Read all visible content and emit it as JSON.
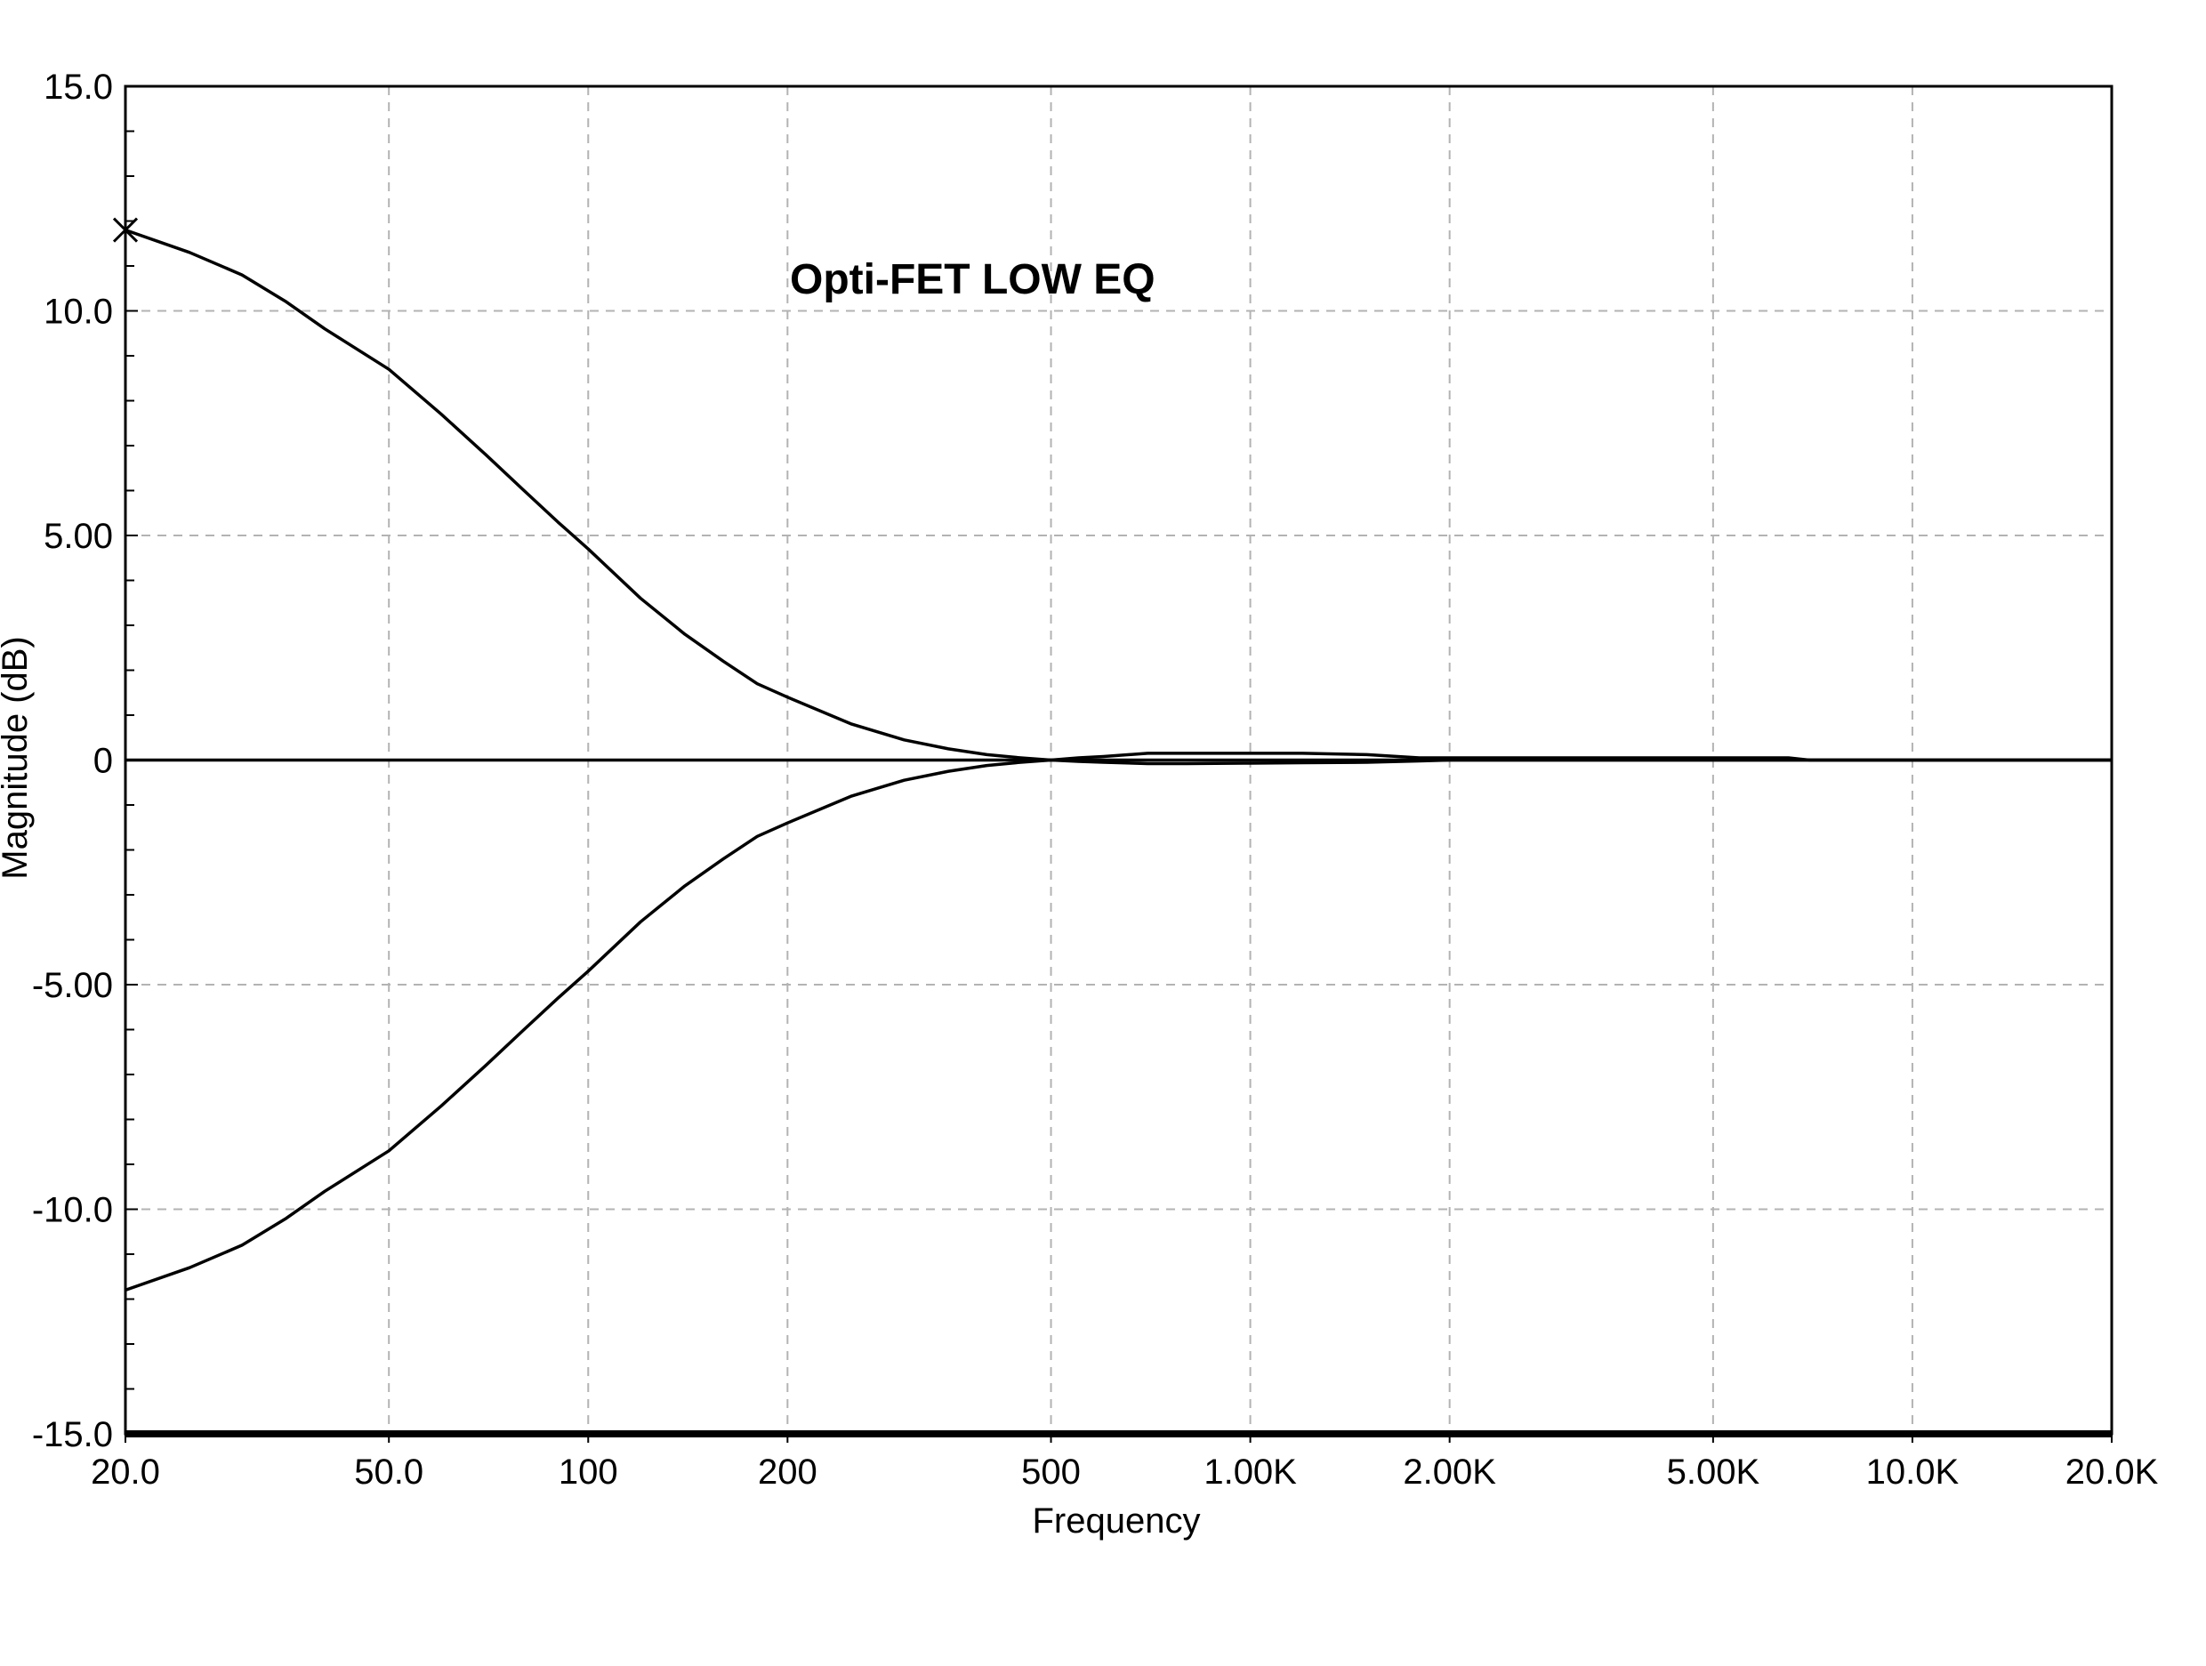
{
  "chart_data": {
    "type": "line",
    "title": "Opti-FET LOW EQ",
    "xlabel": "Frequency",
    "ylabel": "Magnitude  (dB)",
    "xscale": "log",
    "xlim": [
      20,
      20000
    ],
    "ylim": [
      -15,
      15
    ],
    "x_ticks": [
      {
        "value": 20,
        "label": "20.0"
      },
      {
        "value": 50,
        "label": "50.0"
      },
      {
        "value": 100,
        "label": "100"
      },
      {
        "value": 200,
        "label": "200"
      },
      {
        "value": 500,
        "label": "500"
      },
      {
        "value": 1000,
        "label": "1.00K"
      },
      {
        "value": 2000,
        "label": "2.00K"
      },
      {
        "value": 5000,
        "label": "5.00K"
      },
      {
        "value": 10000,
        "label": "10.0K"
      },
      {
        "value": 20000,
        "label": "20.0K"
      }
    ],
    "y_ticks": [
      {
        "value": 15,
        "label": "15.0"
      },
      {
        "value": 10,
        "label": "10.0"
      },
      {
        "value": 5,
        "label": "5.00"
      },
      {
        "value": 0,
        "label": "0"
      },
      {
        "value": -5,
        "label": "-5.00"
      },
      {
        "value": -10,
        "label": "-10.0"
      },
      {
        "value": -15,
        "label": "-15.0"
      }
    ],
    "grid": true,
    "marker": {
      "shape": "x",
      "x": 20,
      "y": 11.8
    },
    "series": [
      {
        "x": [
          20,
          25,
          30,
          35,
          40,
          50,
          60,
          70,
          80,
          90,
          100,
          120,
          140,
          160,
          180,
          200,
          250,
          300,
          350,
          400,
          450,
          500,
          550,
          600,
          700,
          800,
          1000,
          1200,
          1500,
          1800,
          2000,
          3000,
          5000,
          7000,
          10000,
          15000,
          20000
        ],
        "y": [
          11.8,
          11.3,
          10.8,
          10.2,
          9.6,
          8.7,
          7.7,
          6.8,
          6.0,
          5.3,
          4.7,
          3.6,
          2.8,
          2.2,
          1.7,
          1.4,
          0.8,
          0.45,
          0.25,
          0.12,
          0.05,
          0.0,
          -0.03,
          -0.05,
          -0.08,
          -0.08,
          -0.07,
          -0.06,
          -0.05,
          -0.02,
          0.0,
          0.0,
          0.0,
          0.0,
          0.0,
          0.0,
          0.0
        ]
      },
      {
        "x": [
          20,
          25,
          30,
          35,
          40,
          50,
          60,
          70,
          80,
          90,
          100,
          120,
          140,
          160,
          180,
          200,
          250,
          300,
          350,
          400,
          450,
          500,
          550,
          600,
          700,
          800,
          1000,
          1200,
          1500,
          1800,
          2000,
          3000,
          5000,
          6500,
          7000,
          10000,
          15000,
          20000
        ],
        "y": [
          -11.8,
          -11.3,
          -10.8,
          -10.2,
          -9.6,
          -8.7,
          -7.7,
          -6.8,
          -6.0,
          -5.3,
          -4.7,
          -3.6,
          -2.8,
          -2.2,
          -1.7,
          -1.4,
          -0.8,
          -0.45,
          -0.25,
          -0.12,
          -0.05,
          0.0,
          0.05,
          0.08,
          0.15,
          0.15,
          0.15,
          0.15,
          0.12,
          0.05,
          0.05,
          0.05,
          0.05,
          0.05,
          0.0,
          0.0,
          0.0,
          0.0
        ]
      },
      {
        "x": [
          20,
          20000
        ],
        "y": [
          0,
          0
        ]
      }
    ]
  }
}
